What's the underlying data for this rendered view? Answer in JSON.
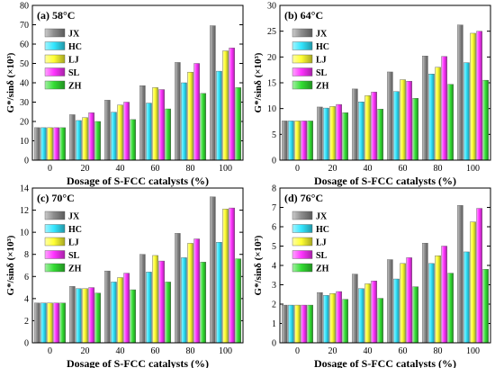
{
  "colors": {
    "JX": "#8c8c8c",
    "HC": "#33e6ff",
    "LJ": "#ffff33",
    "SL": "#ff33ff",
    "ZH": "#33dd33"
  },
  "chart_data": [
    {
      "type": "bar",
      "title": "(a) 58°C",
      "xlabel": "Dosage of S-FCC catalysts (%)",
      "ylabel": "G*/sinδ (×10³)",
      "categories": [
        "0",
        "20",
        "40",
        "60",
        "80",
        "100"
      ],
      "ylim": [
        0,
        80
      ],
      "yticks": [
        0,
        10,
        20,
        30,
        40,
        50,
        60,
        70,
        80
      ],
      "legend_position": "top-left",
      "series": [
        {
          "name": "JX",
          "values": [
            16.8,
            23.5,
            31.0,
            38.5,
            50.5,
            69.5
          ]
        },
        {
          "name": "HC",
          "values": [
            16.8,
            20.5,
            24.8,
            29.5,
            40.0,
            46.0
          ]
        },
        {
          "name": "LJ",
          "values": [
            16.8,
            22.0,
            28.5,
            37.5,
            45.5,
            56.5
          ]
        },
        {
          "name": "SL",
          "values": [
            16.8,
            24.5,
            30.0,
            36.5,
            50.0,
            58.0
          ]
        },
        {
          "name": "ZH",
          "values": [
            16.8,
            20.0,
            21.0,
            26.5,
            34.5,
            37.5
          ]
        }
      ]
    },
    {
      "type": "bar",
      "title": "(b) 64°C",
      "xlabel": "Dosage of S-FCC catalysts (%)",
      "ylabel": "G*/sinδ (×10³)",
      "categories": [
        "0",
        "20",
        "40",
        "60",
        "80",
        "100"
      ],
      "ylim": [
        0,
        30
      ],
      "yticks": [
        0,
        5,
        10,
        15,
        20,
        25,
        30
      ],
      "legend_position": "top-left",
      "series": [
        {
          "name": "JX",
          "values": [
            7.6,
            10.3,
            13.8,
            17.1,
            20.2,
            26.2
          ]
        },
        {
          "name": "HC",
          "values": [
            7.6,
            10.1,
            11.3,
            13.3,
            16.7,
            18.9
          ]
        },
        {
          "name": "LJ",
          "values": [
            7.6,
            10.4,
            12.5,
            15.6,
            18.0,
            24.6
          ]
        },
        {
          "name": "SL",
          "values": [
            7.6,
            10.8,
            13.2,
            15.3,
            20.1,
            25.0
          ]
        },
        {
          "name": "ZH",
          "values": [
            7.6,
            9.2,
            9.9,
            12.0,
            14.7,
            15.5
          ]
        }
      ]
    },
    {
      "type": "bar",
      "title": "(c) 70°C",
      "xlabel": "Dosage of S-FCC catalysts (%)",
      "ylabel": "G*/sinδ (×10³)",
      "categories": [
        "0",
        "20",
        "40",
        "60",
        "80",
        "100"
      ],
      "ylim": [
        0,
        14
      ],
      "yticks": [
        0,
        2,
        4,
        6,
        8,
        10,
        12,
        14
      ],
      "legend_position": "top-left",
      "series": [
        {
          "name": "JX",
          "values": [
            3.6,
            5.1,
            6.5,
            8.0,
            9.9,
            13.2
          ]
        },
        {
          "name": "HC",
          "values": [
            3.6,
            4.9,
            5.5,
            6.4,
            7.7,
            9.1
          ]
        },
        {
          "name": "LJ",
          "values": [
            3.6,
            4.9,
            5.9,
            7.9,
            9.0,
            12.1
          ]
        },
        {
          "name": "SL",
          "values": [
            3.6,
            5.0,
            6.3,
            7.4,
            9.4,
            12.2
          ]
        },
        {
          "name": "ZH",
          "values": [
            3.6,
            4.5,
            4.8,
            5.5,
            7.3,
            7.6
          ]
        }
      ]
    },
    {
      "type": "bar",
      "title": "(d) 76°C",
      "xlabel": "Dosage of S-FCC catalysts (%)",
      "ylabel": "G*/sinδ (×10³)",
      "categories": [
        "0",
        "20",
        "40",
        "60",
        "80",
        "100"
      ],
      "ylim": [
        0,
        8
      ],
      "yticks": [
        0,
        1,
        2,
        3,
        4,
        5,
        6,
        7,
        8
      ],
      "legend_position": "top-left",
      "series": [
        {
          "name": "JX",
          "values": [
            1.95,
            2.6,
            3.55,
            4.3,
            5.15,
            7.1
          ]
        },
        {
          "name": "HC",
          "values": [
            1.95,
            2.45,
            2.8,
            3.3,
            4.1,
            4.7
          ]
        },
        {
          "name": "LJ",
          "values": [
            1.95,
            2.55,
            3.05,
            4.1,
            4.5,
            6.25
          ]
        },
        {
          "name": "SL",
          "values": [
            1.95,
            2.65,
            3.2,
            4.4,
            5.0,
            6.95
          ]
        },
        {
          "name": "ZH",
          "values": [
            1.95,
            2.25,
            2.3,
            2.9,
            3.6,
            3.8
          ]
        }
      ]
    }
  ]
}
